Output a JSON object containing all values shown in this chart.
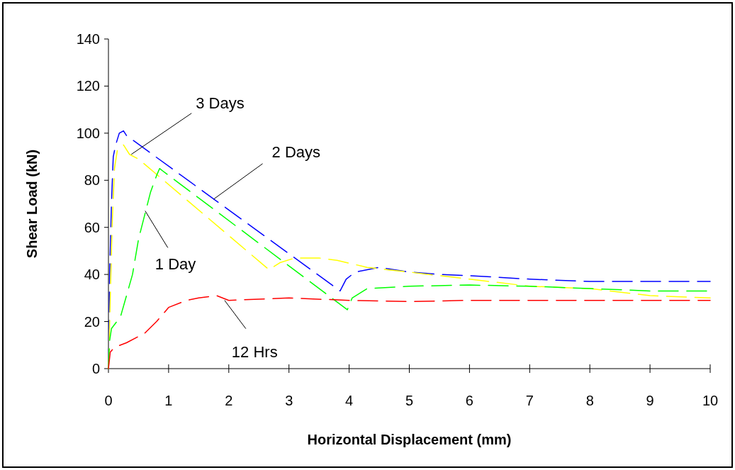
{
  "chart_data": {
    "type": "line",
    "xlabel": "Horizontal Displacement (mm)",
    "ylabel": "Shear Load (kN)",
    "xlim": [
      0,
      10
    ],
    "ylim": [
      0,
      140
    ],
    "xticks": [
      0,
      1,
      2,
      3,
      4,
      5,
      6,
      7,
      8,
      9,
      10
    ],
    "yticks": [
      0,
      20,
      40,
      60,
      80,
      100,
      120,
      140
    ],
    "grid": false,
    "line_style": "dashed",
    "marker": "none",
    "series": [
      {
        "color": "#0000ff",
        "x": [
          0,
          0.02,
          0.05,
          0.08,
          0.12,
          0.18,
          0.25,
          0.3,
          3.85,
          3.95,
          4.1,
          4.5,
          5,
          5.5,
          6,
          7,
          8,
          9,
          10
        ],
        "values": [
          0,
          40,
          70,
          90,
          95,
          100,
          101,
          99,
          33,
          38,
          41,
          43,
          41,
          40,
          39.5,
          38,
          37,
          37,
          37
        ]
      },
      {
        "color": "#ffff00",
        "x": [
          0,
          0.03,
          0.06,
          0.1,
          0.15,
          0.25,
          0.35,
          0.5,
          2.67,
          2.85,
          3.1,
          3.5,
          3.8,
          4.3,
          5,
          6,
          7,
          8,
          9,
          10
        ],
        "values": [
          0,
          30,
          60,
          85,
          93,
          95,
          91,
          89,
          42,
          45,
          47,
          47,
          46,
          43,
          41,
          38,
          35,
          34,
          31,
          30
        ]
      },
      {
        "color": "#00ff00",
        "x": [
          0,
          0.02,
          0.05,
          0.2,
          0.4,
          0.5,
          0.6,
          0.7,
          0.8,
          0.85,
          0.9,
          3.97,
          4.05,
          4.3,
          5,
          6,
          7,
          8,
          9,
          10
        ],
        "values": [
          0,
          12,
          17,
          22,
          40,
          55,
          65,
          75,
          82,
          85,
          84,
          25,
          30,
          34,
          35,
          35.5,
          35,
          34,
          33,
          33
        ]
      },
      {
        "color": "#ff0000",
        "x": [
          0,
          0.03,
          0.1,
          0.3,
          0.6,
          0.8,
          1,
          1.3,
          1.5,
          1.8,
          2,
          3,
          4,
          5,
          6,
          7,
          8,
          9,
          10
        ],
        "values": [
          0,
          7,
          9,
          11,
          15,
          20,
          26,
          29,
          30,
          31,
          29,
          30,
          29,
          28.5,
          29,
          29,
          29,
          29,
          29
        ]
      }
    ],
    "annotations": [
      {
        "text": "3 Days",
        "x": 0.38,
        "y": 91
      },
      {
        "text": "2 Days",
        "x": 1.75,
        "y": 72
      },
      {
        "text": "1 Day",
        "x": 0.61,
        "y": 67
      },
      {
        "text": "12 Hrs",
        "x": 1.93,
        "y": 29
      }
    ]
  }
}
